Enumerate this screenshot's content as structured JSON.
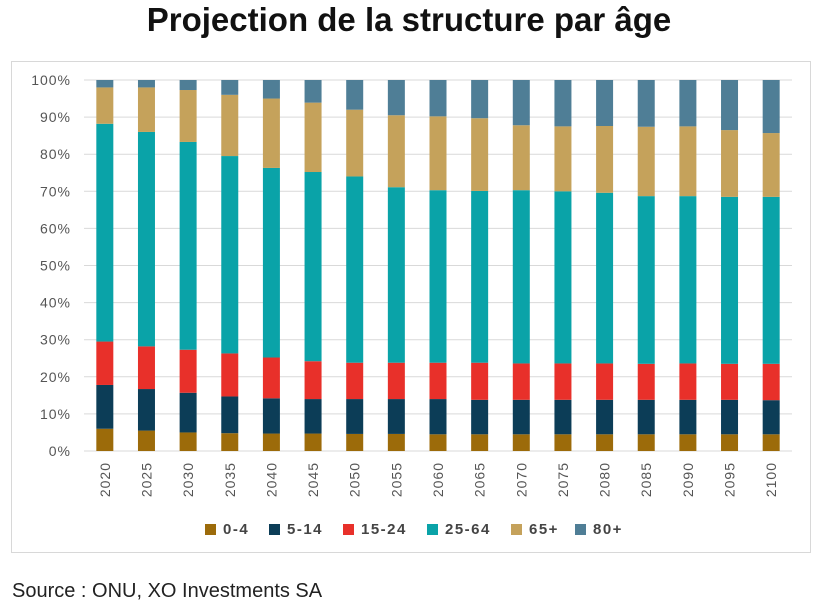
{
  "title": "Projection de la structure par âge",
  "source": "Source : ONU, XO Investments SA",
  "chart_data": {
    "type": "bar",
    "stacked": true,
    "percent": true,
    "categories": [
      "2020",
      "2025",
      "2030",
      "2035",
      "2040",
      "2045",
      "2050",
      "2055",
      "2060",
      "2065",
      "2070",
      "2075",
      "2080",
      "2085",
      "2090",
      "2095",
      "2100"
    ],
    "y_ticks": [
      "0%",
      "10%",
      "20%",
      "30%",
      "40%",
      "50%",
      "60%",
      "70%",
      "80%",
      "90%",
      "100%"
    ],
    "ylim": [
      0,
      100
    ],
    "grid": true,
    "legend_position": "bottom",
    "series": [
      {
        "name": "0-4",
        "color": "#9c6b0a",
        "values": [
          6,
          5.5,
          5,
          4.8,
          4.7,
          4.7,
          4.6,
          4.6,
          4.5,
          4.5,
          4.5,
          4.5,
          4.5,
          4.5,
          4.5,
          4.5,
          4.5
        ]
      },
      {
        "name": "5-14",
        "color": "#0c3d57",
        "values": [
          11.8,
          11.2,
          10.7,
          9.9,
          9.5,
          9.3,
          9.4,
          9.4,
          9.5,
          9.3,
          9.3,
          9.3,
          9.3,
          9.3,
          9.3,
          9.3,
          9.2
        ]
      },
      {
        "name": "15-24",
        "color": "#e8302a",
        "values": [
          11.7,
          11.5,
          11.6,
          11.6,
          11,
          10.2,
          9.8,
          9.8,
          9.8,
          10,
          9.8,
          9.8,
          9.8,
          9.7,
          9.8,
          9.7,
          9.8
        ]
      },
      {
        "name": "25-64",
        "color": "#0aa3a8",
        "values": [
          58.7,
          57.8,
          56,
          53.2,
          51.1,
          51,
          50.2,
          47.3,
          46.5,
          46.3,
          46.7,
          46.4,
          46,
          45.2,
          45.1,
          45,
          45
        ]
      },
      {
        "name": "65+",
        "color": "#c5a25b",
        "values": [
          9.8,
          12,
          14,
          16.5,
          18.7,
          18.7,
          18,
          19.4,
          19.9,
          19.6,
          17.5,
          17.5,
          18,
          18.7,
          18.8,
          18,
          17.2
        ]
      },
      {
        "name": "80+",
        "color": "#4f7e96",
        "values": [
          2,
          2,
          2.7,
          4,
          5,
          6.1,
          8,
          9.5,
          9.8,
          10.3,
          12.2,
          12.5,
          12.4,
          12.6,
          12.5,
          13.5,
          14.3
        ]
      }
    ]
  }
}
